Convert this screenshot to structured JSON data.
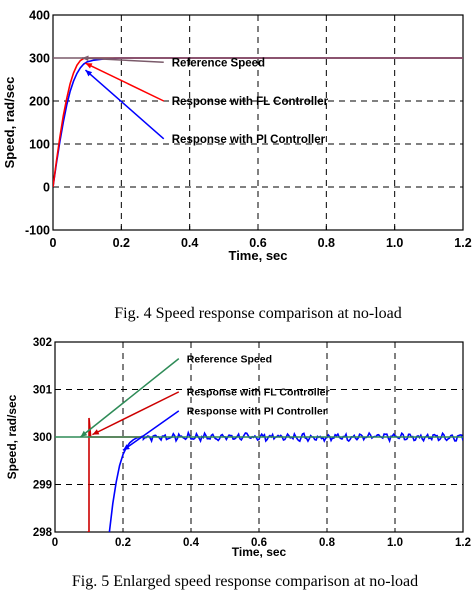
{
  "chart_data": [
    {
      "type": "line",
      "title": "",
      "xlabel": "Time, sec",
      "ylabel": "Speed, rad/sec",
      "xlim": [
        0,
        1.2
      ],
      "ylim": [
        -100,
        400
      ],
      "xticks": [
        0,
        0.2,
        0.4,
        0.6,
        0.8,
        1.0,
        1.2
      ],
      "xtick_labels": [
        "0",
        "0.2",
        "0.4",
        "0.6",
        "0.8",
        "1.0",
        "1.2"
      ],
      "yticks": [
        -100,
        0,
        100,
        200,
        300,
        400
      ],
      "ytick_labels": [
        "-100",
        "0",
        "100",
        "200",
        "300",
        "400"
      ],
      "grid": true,
      "series": [
        {
          "name": "Reference Speed",
          "color": "#7a5a6a",
          "x": [
            0,
            1.2
          ],
          "y": [
            300,
            300
          ]
        },
        {
          "name": "Response with FL Controller",
          "color": "#ff0000",
          "x": [
            0,
            0.01,
            0.02,
            0.03,
            0.04,
            0.05,
            0.06,
            0.07,
            0.08,
            0.09,
            0.1,
            1.2
          ],
          "y": [
            0,
            60,
            115,
            165,
            205,
            240,
            265,
            283,
            294,
            299,
            300,
            300
          ]
        },
        {
          "name": "Response with PI Controller",
          "color": "#0000ff",
          "x": [
            0,
            0.01,
            0.02,
            0.03,
            0.04,
            0.05,
            0.06,
            0.07,
            0.08,
            0.09,
            0.1,
            0.12,
            0.14,
            0.16,
            0.18,
            0.2,
            1.2
          ],
          "y": [
            0,
            55,
            105,
            150,
            190,
            222,
            246,
            264,
            277,
            286,
            291,
            295,
            297,
            298.5,
            299.5,
            300,
            300
          ]
        }
      ],
      "annotations": [
        {
          "text": "Reference Speed",
          "point": [
            0.085,
            300
          ],
          "label_at": [
            0.33,
            290
          ]
        },
        {
          "text": "Response with FL Controller",
          "point": [
            0.095,
            288
          ],
          "label_at": [
            0.33,
            200
          ]
        },
        {
          "text": "Response with PI Controller",
          "point": [
            0.095,
            272
          ],
          "label_at": [
            0.33,
            112
          ]
        }
      ],
      "caption": "Fig. 4 Speed response comparison at no-load"
    },
    {
      "type": "line",
      "title": "",
      "xlabel": "Time, sec",
      "ylabel": "Speed, rad/sec",
      "xlim": [
        0,
        1.2
      ],
      "ylim": [
        298,
        302
      ],
      "xticks": [
        0,
        0.2,
        0.4,
        0.6,
        0.8,
        1.0,
        1.2
      ],
      "xtick_labels": [
        "0",
        "0.2",
        "0.4",
        "0.6",
        "0.8",
        "1.0",
        "1.2"
      ],
      "yticks": [
        298,
        299,
        300,
        301,
        302
      ],
      "ytick_labels": [
        "298",
        "299",
        "300",
        "301",
        "302"
      ],
      "grid": true,
      "series": [
        {
          "name": "Reference Speed",
          "color": "#2e8b57",
          "x": [
            0,
            1.2
          ],
          "y": [
            300,
            300
          ]
        },
        {
          "name": "Response with FL Controller",
          "color": "#cc0000",
          "x": [
            0.095,
            0.1,
            0.1,
            0.105,
            0.26
          ],
          "y": [
            298,
            298,
            300.4,
            300,
            300
          ]
        },
        {
          "name": "Response with PI Controller",
          "color": "#0000ff",
          "x": [
            0.16,
            0.17,
            0.18,
            0.19,
            0.2,
            0.21,
            0.22,
            0.23,
            0.24,
            0.25,
            0.26
          ],
          "y": [
            298,
            298.6,
            299.05,
            299.4,
            299.63,
            299.78,
            299.88,
            299.94,
            299.98,
            300.0,
            300.02
          ],
          "oscillation": {
            "from_x": 0.26,
            "to_x": 1.2,
            "mean": 300.0,
            "amplitude": 0.08
          }
        }
      ],
      "annotations": [
        {
          "text": "Reference Speed",
          "point": [
            0.075,
            300
          ],
          "label_at": [
            0.37,
            301.65
          ]
        },
        {
          "text": "Response with FL Controller",
          "point": [
            0.11,
            300.05
          ],
          "label_at": [
            0.37,
            300.95
          ]
        },
        {
          "text": "Response with PI Controller",
          "point": [
            0.2,
            299.72
          ],
          "label_at": [
            0.37,
            300.55
          ]
        }
      ],
      "caption": "Fig. 5 Enlarged speed response comparison at no-load"
    }
  ]
}
